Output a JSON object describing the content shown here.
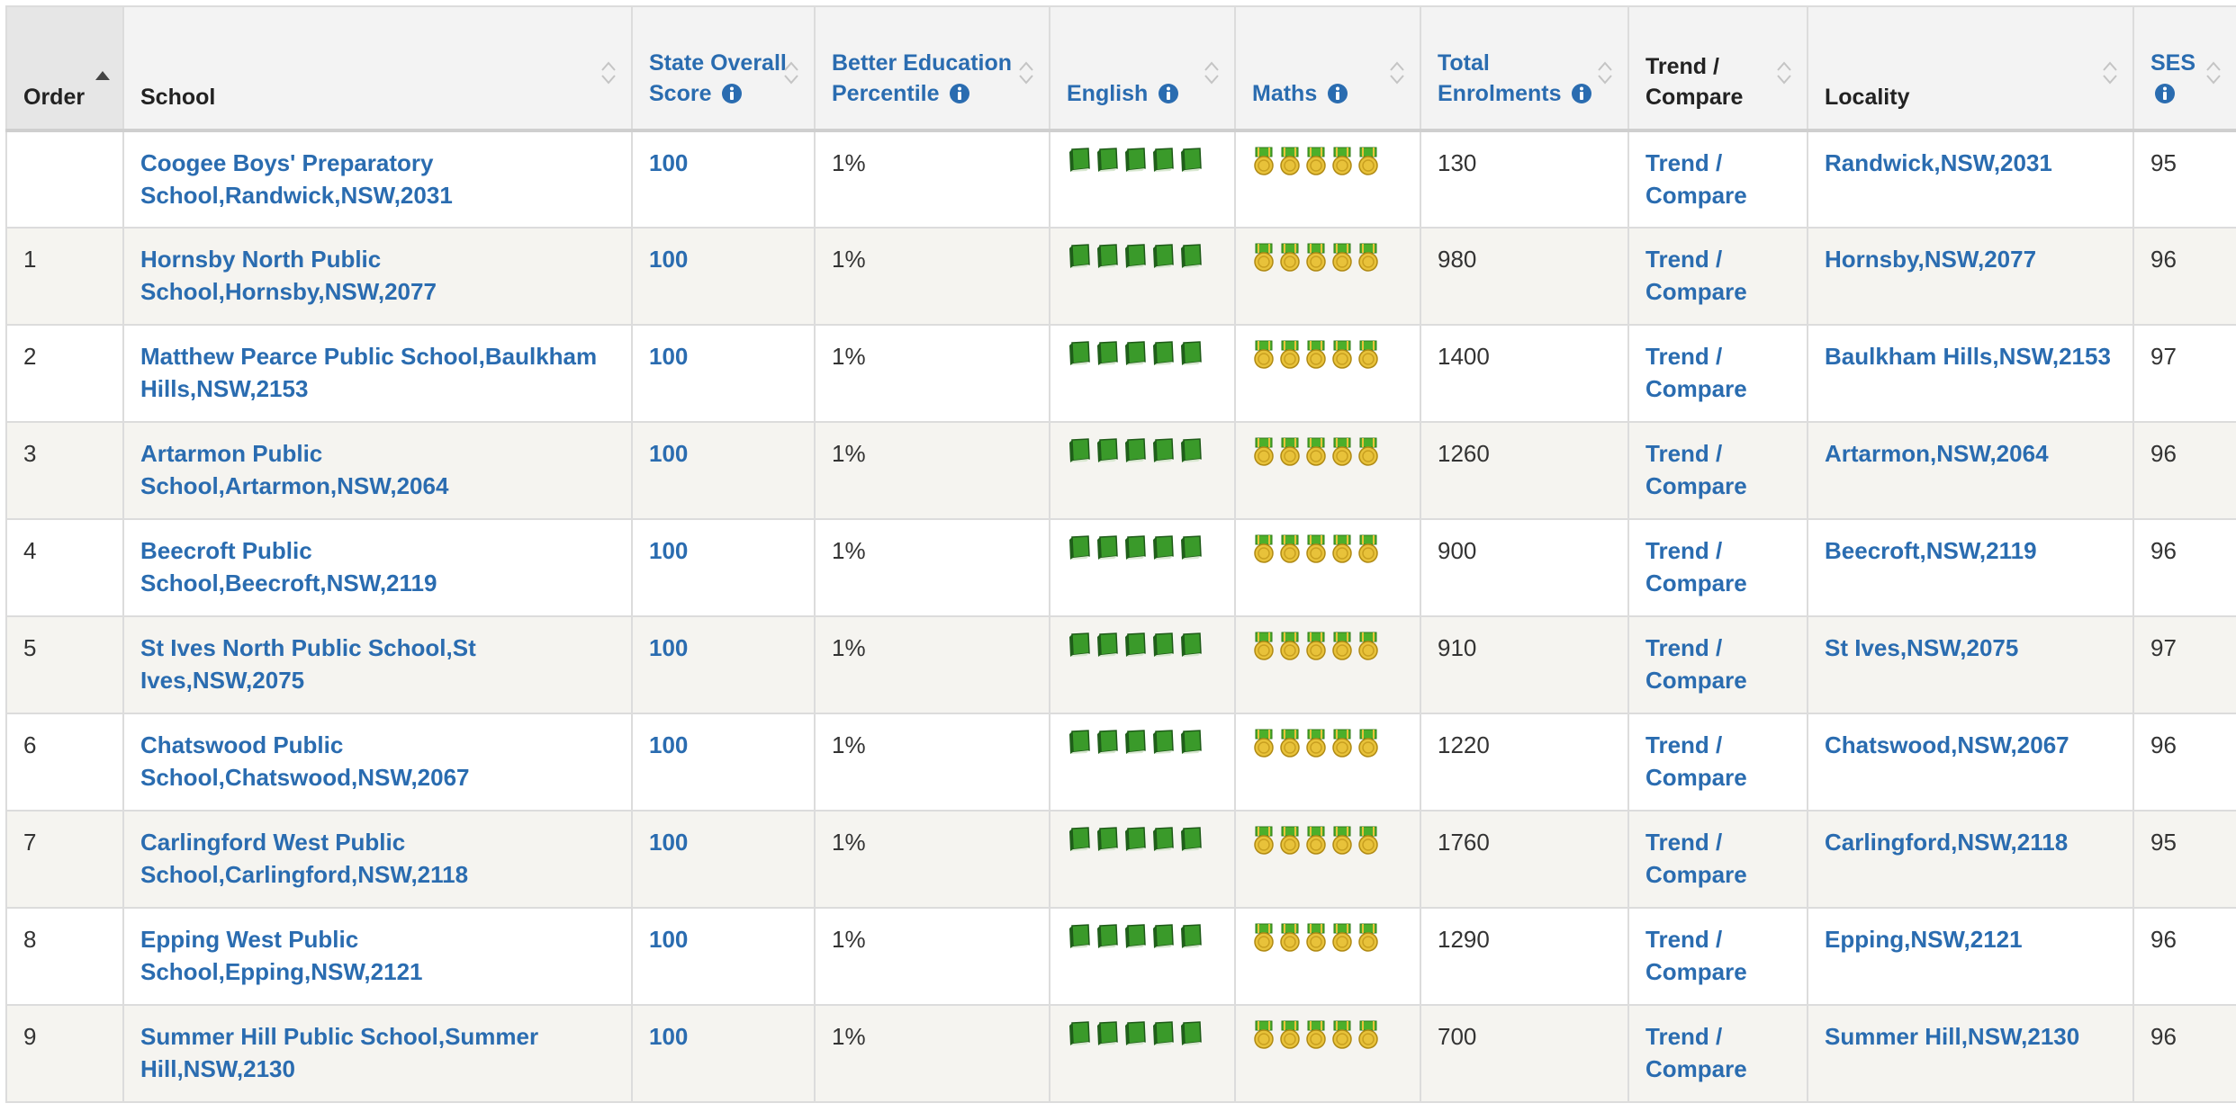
{
  "headers": {
    "order": "Order",
    "school": "School",
    "state_score": "State Overall Score",
    "percentile": "Better Education Percentile",
    "english": "English",
    "maths": "Maths",
    "enrolments": "Total Enrolments",
    "trend": "Trend / Compare",
    "locality": "Locality",
    "ses": "SES"
  },
  "colors": {
    "link": "#2a6cb0",
    "book_green": "#3a9a2a",
    "medal_gold": "#e8c23a",
    "medal_ribbon": "#4caf2a"
  },
  "icons": {
    "english": "book-icon",
    "maths": "medal-icon",
    "info": "info-icon",
    "sort": "sort-icon"
  },
  "rows": [
    {
      "order": "",
      "school": "Coogee Boys' Preparatory School,Randwick,NSW,2031",
      "score": "100",
      "percentile": "1%",
      "english_rating": 5,
      "maths_rating": 5,
      "enrolments": "130",
      "trend": "Trend / Compare",
      "locality": "Randwick,NSW,2031",
      "ses": "95"
    },
    {
      "order": "1",
      "school": "Hornsby North Public School,Hornsby,NSW,2077",
      "score": "100",
      "percentile": "1%",
      "english_rating": 5,
      "maths_rating": 5,
      "enrolments": "980",
      "trend": "Trend / Compare",
      "locality": "Hornsby,NSW,2077",
      "ses": "96"
    },
    {
      "order": "2",
      "school": "Matthew Pearce Public School,Baulkham Hills,NSW,2153",
      "score": "100",
      "percentile": "1%",
      "english_rating": 5,
      "maths_rating": 5,
      "enrolments": "1400",
      "trend": "Trend / Compare",
      "locality": "Baulkham Hills,NSW,2153",
      "ses": "97"
    },
    {
      "order": "3",
      "school": "Artarmon Public School,Artarmon,NSW,2064",
      "score": "100",
      "percentile": "1%",
      "english_rating": 5,
      "maths_rating": 5,
      "enrolments": "1260",
      "trend": "Trend / Compare",
      "locality": "Artarmon,NSW,2064",
      "ses": "96"
    },
    {
      "order": "4",
      "school": "Beecroft Public School,Beecroft,NSW,2119",
      "score": "100",
      "percentile": "1%",
      "english_rating": 5,
      "maths_rating": 5,
      "enrolments": "900",
      "trend": "Trend / Compare",
      "locality": "Beecroft,NSW,2119",
      "ses": "96"
    },
    {
      "order": "5",
      "school": "St Ives North Public School,St Ives,NSW,2075",
      "score": "100",
      "percentile": "1%",
      "english_rating": 5,
      "maths_rating": 5,
      "enrolments": "910",
      "trend": "Trend / Compare",
      "locality": "St Ives,NSW,2075",
      "ses": "97"
    },
    {
      "order": "6",
      "school": "Chatswood Public School,Chatswood,NSW,2067",
      "score": "100",
      "percentile": "1%",
      "english_rating": 5,
      "maths_rating": 5,
      "enrolments": "1220",
      "trend": "Trend / Compare",
      "locality": "Chatswood,NSW,2067",
      "ses": "96"
    },
    {
      "order": "7",
      "school": "Carlingford West Public School,Carlingford,NSW,2118",
      "score": "100",
      "percentile": "1%",
      "english_rating": 5,
      "maths_rating": 5,
      "enrolments": "1760",
      "trend": "Trend / Compare",
      "locality": "Carlingford,NSW,2118",
      "ses": "95"
    },
    {
      "order": "8",
      "school": "Epping West Public School,Epping,NSW,2121",
      "score": "100",
      "percentile": "1%",
      "english_rating": 5,
      "maths_rating": 5,
      "enrolments": "1290",
      "trend": "Trend / Compare",
      "locality": "Epping,NSW,2121",
      "ses": "96"
    },
    {
      "order": "9",
      "school": "Summer Hill Public School,Summer Hill,NSW,2130",
      "score": "100",
      "percentile": "1%",
      "english_rating": 5,
      "maths_rating": 5,
      "enrolments": "700",
      "trend": "Trend / Compare",
      "locality": "Summer Hill,NSW,2130",
      "ses": "96"
    }
  ]
}
